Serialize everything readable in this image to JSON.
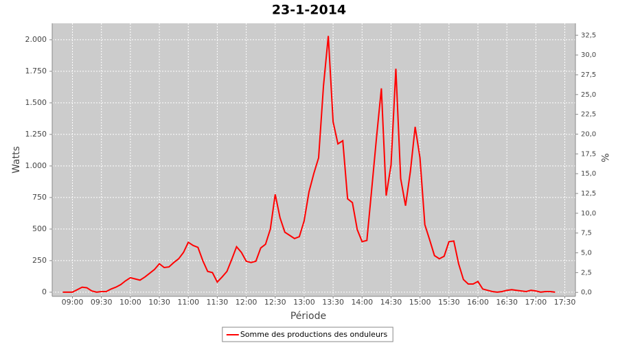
{
  "chart_data": {
    "type": "line",
    "title": "23-1-2014",
    "x_label": "Période",
    "y_label": "Watts",
    "y2_label": "%",
    "x": [
      "08:50",
      "08:55",
      "09:00",
      "09:05",
      "09:10",
      "09:15",
      "09:20",
      "09:25",
      "09:30",
      "09:35",
      "09:40",
      "09:45",
      "09:50",
      "09:55",
      "10:00",
      "10:05",
      "10:10",
      "10:15",
      "10:20",
      "10:25",
      "10:30",
      "10:35",
      "10:40",
      "10:45",
      "10:50",
      "10:55",
      "11:00",
      "11:05",
      "11:10",
      "11:15",
      "11:20",
      "11:25",
      "11:30",
      "11:35",
      "11:40",
      "11:45",
      "11:50",
      "11:55",
      "12:00",
      "12:05",
      "12:10",
      "12:15",
      "12:20",
      "12:25",
      "12:30",
      "12:35",
      "12:40",
      "12:45",
      "12:50",
      "12:55",
      "13:00",
      "13:05",
      "13:10",
      "13:15",
      "13:20",
      "13:25",
      "13:30",
      "13:35",
      "13:40",
      "13:45",
      "13:50",
      "13:55",
      "14:00",
      "14:05",
      "14:10",
      "14:15",
      "14:20",
      "14:25",
      "14:30",
      "14:35",
      "14:40",
      "14:45",
      "14:50",
      "14:55",
      "15:00",
      "15:05",
      "15:10",
      "15:15",
      "15:20",
      "15:25",
      "15:30",
      "15:35",
      "15:40",
      "15:45",
      "15:50",
      "15:55",
      "16:00",
      "16:05",
      "16:10",
      "16:15",
      "16:20",
      "16:25",
      "16:30",
      "16:35",
      "16:40",
      "16:45",
      "16:50",
      "16:55",
      "17:00",
      "17:05",
      "17:10",
      "17:15",
      "17:20"
    ],
    "series": [
      {
        "name": "Somme des productions des onduleurs",
        "color": "#ff0000",
        "values": [
          0,
          0,
          0,
          20,
          40,
          35,
          10,
          0,
          5,
          5,
          25,
          40,
          60,
          90,
          115,
          105,
          95,
          120,
          150,
          180,
          225,
          195,
          200,
          235,
          265,
          315,
          395,
          370,
          355,
          250,
          165,
          155,
          80,
          120,
          165,
          260,
          360,
          315,
          245,
          235,
          245,
          350,
          380,
          500,
          775,
          590,
          475,
          450,
          425,
          440,
          565,
          795,
          940,
          1065,
          1635,
          2030,
          1350,
          1175,
          1200,
          740,
          710,
          495,
          400,
          410,
          820,
          1230,
          1615,
          765,
          1010,
          1770,
          900,
          685,
          955,
          1310,
          1065,
          535,
          415,
          290,
          265,
          285,
          400,
          405,
          225,
          100,
          65,
          65,
          85,
          25,
          15,
          5,
          0,
          5,
          15,
          20,
          15,
          10,
          5,
          15,
          10,
          0,
          5,
          5,
          0
        ]
      }
    ],
    "xlim": [
      "08:39",
      "17:41"
    ],
    "xticks": [
      "09:00",
      "09:30",
      "10:00",
      "10:30",
      "11:00",
      "11:30",
      "12:00",
      "12:30",
      "13:00",
      "13:30",
      "14:00",
      "14:30",
      "15:00",
      "15:30",
      "16:00",
      "16:30",
      "17:00",
      "17:30"
    ],
    "ylim": [
      -33,
      2130
    ],
    "yticks": [
      0,
      250,
      500,
      750,
      {
        "value": 1000,
        "label": "1.000"
      },
      {
        "value": 1250,
        "label": "1.250"
      },
      {
        "value": 1500,
        "label": "1.500"
      },
      {
        "value": 1750,
        "label": "1.750"
      },
      {
        "value": 2000,
        "label": "2.000"
      }
    ],
    "y2lim": [
      -0.5,
      34
    ],
    "y2ticks": [
      {
        "value": 0,
        "label": "0,0"
      },
      {
        "value": 2.5,
        "label": "2,5"
      },
      {
        "value": 5,
        "label": "5,0"
      },
      {
        "value": 7.5,
        "label": "7,5"
      },
      {
        "value": 10,
        "label": "10,0"
      },
      {
        "value": 12.5,
        "label": "12,5"
      },
      {
        "value": 15,
        "label": "15,0"
      },
      {
        "value": 17.5,
        "label": "17,5"
      },
      {
        "value": 20,
        "label": "20,0"
      },
      {
        "value": 22.5,
        "label": "22,5"
      },
      {
        "value": 25,
        "label": "25,0"
      },
      {
        "value": 27.5,
        "label": "27,5"
      },
      {
        "value": 30,
        "label": "30,0"
      },
      {
        "value": 32.5,
        "label": "32,5"
      }
    ],
    "grid": true,
    "legend": "bottom"
  }
}
